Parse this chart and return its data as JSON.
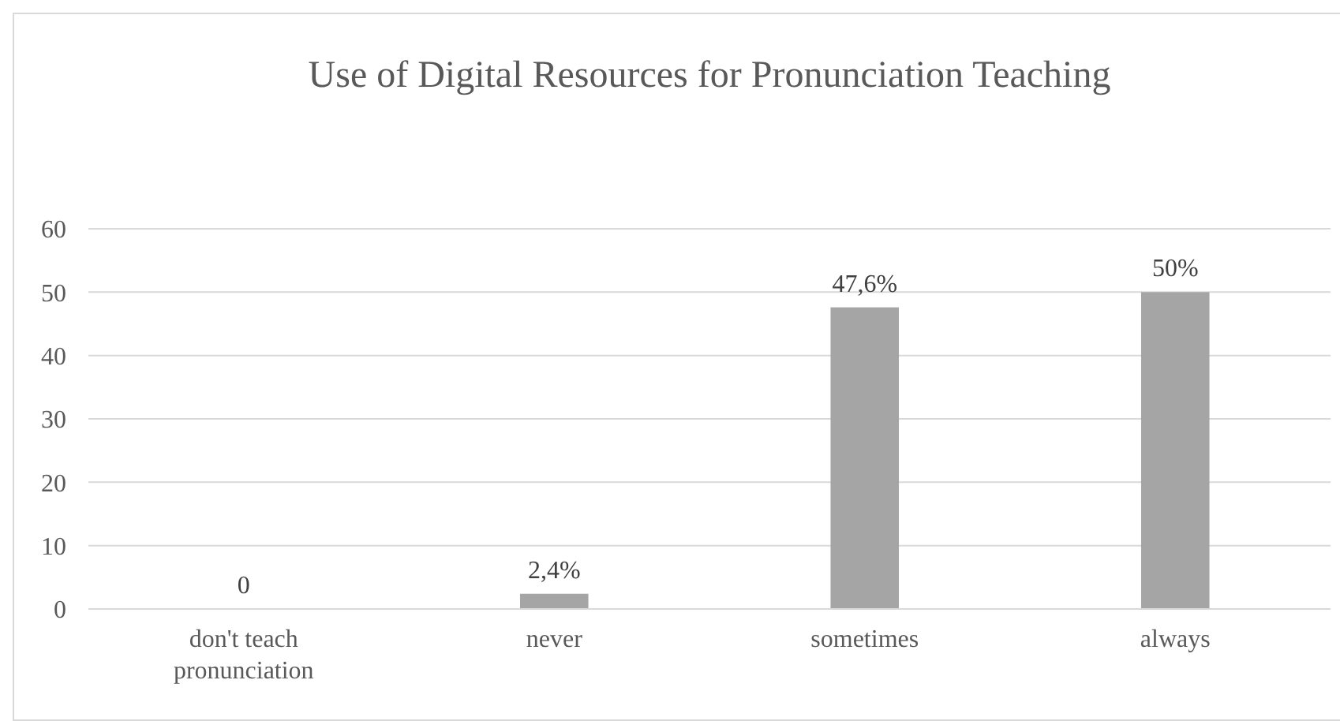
{
  "chart_data": {
    "type": "bar",
    "title": "Use of Digital Resources for Pronunciation Teaching",
    "categories": [
      "don't teach pronunciation",
      "never",
      "sometimes",
      "always"
    ],
    "values": [
      0,
      2.4,
      47.6,
      50
    ],
    "color": "#a5a5a5",
    "value_labels": [
      "0",
      "2,4%",
      "47,6%",
      "50%"
    ],
    "ylim": [
      0,
      60
    ],
    "yticks": [
      0,
      10,
      20,
      30,
      40,
      50,
      60
    ],
    "grid": "y"
  }
}
